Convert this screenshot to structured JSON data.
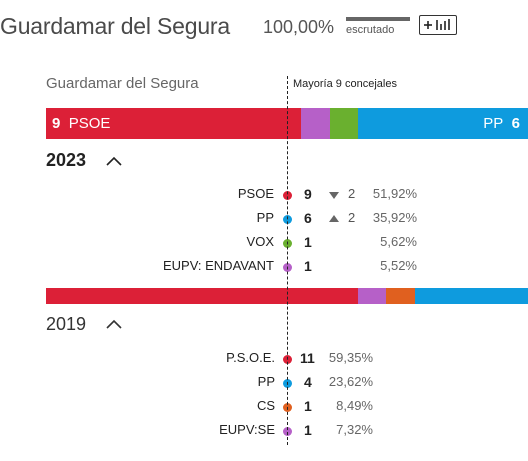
{
  "header": {
    "title": "Guardamar del Segura",
    "scrutiny_pct": "100,00%",
    "scrutiny_label": "escrutado",
    "scrutiny_fraction": 1.0
  },
  "municipality": "Guardamar del Segura",
  "majority_label": "Mayoría 9 concejales",
  "colors": {
    "psoe": "#dc2037",
    "pp": "#0e9bde",
    "vox": "#6ab02f",
    "eupv": "#b660c8",
    "cs": "#e0601f"
  },
  "bar_2023": {
    "left_seats": "9",
    "left_party": "PSOE",
    "right_party": "PP",
    "right_seats": "6",
    "segments": [
      {
        "party": "PSOE",
        "seats": 9,
        "color": "#dc2037"
      },
      {
        "party": "EUPV: ENDAVANT",
        "seats": 1,
        "color": "#b660c8"
      },
      {
        "party": "VOX",
        "seats": 1,
        "color": "#6ab02f"
      },
      {
        "party": "PP",
        "seats": 6,
        "color": "#0e9bde"
      }
    ]
  },
  "year_2023": "2023",
  "results_2023": [
    {
      "party": "PSOE",
      "color": "#dc2037",
      "seats": "9",
      "change_dir": "down",
      "change": "2",
      "pct": "51,92%"
    },
    {
      "party": "PP",
      "color": "#0e9bde",
      "seats": "6",
      "change_dir": "up",
      "change": "2",
      "pct": "35,92%"
    },
    {
      "party": "VOX",
      "color": "#6ab02f",
      "seats": "1",
      "change_dir": "",
      "change": "",
      "pct": "5,62%"
    },
    {
      "party": "EUPV: ENDAVANT",
      "color": "#b660c8",
      "seats": "1",
      "change_dir": "",
      "change": "",
      "pct": "5,52%"
    }
  ],
  "bar_2019": {
    "segments": [
      {
        "party": "P.S.O.E.",
        "seats": 11,
        "color": "#dc2037"
      },
      {
        "party": "EUPV:SE",
        "seats": 1,
        "color": "#b660c8"
      },
      {
        "party": "CS",
        "seats": 1,
        "color": "#e0601f"
      },
      {
        "party": "PP",
        "seats": 4,
        "color": "#0e9bde"
      }
    ]
  },
  "year_2019": "2019",
  "results_2019": [
    {
      "party": "P.S.O.E.",
      "color": "#dc2037",
      "seats": "11",
      "pct": "59,35%"
    },
    {
      "party": "PP",
      "color": "#0e9bde",
      "seats": "4",
      "pct": "23,62%"
    },
    {
      "party": "CS",
      "color": "#e0601f",
      "seats": "1",
      "pct": "8,49%"
    },
    {
      "party": "EUPV:SE",
      "color": "#b660c8",
      "seats": "1",
      "pct": "7,32%"
    }
  ]
}
